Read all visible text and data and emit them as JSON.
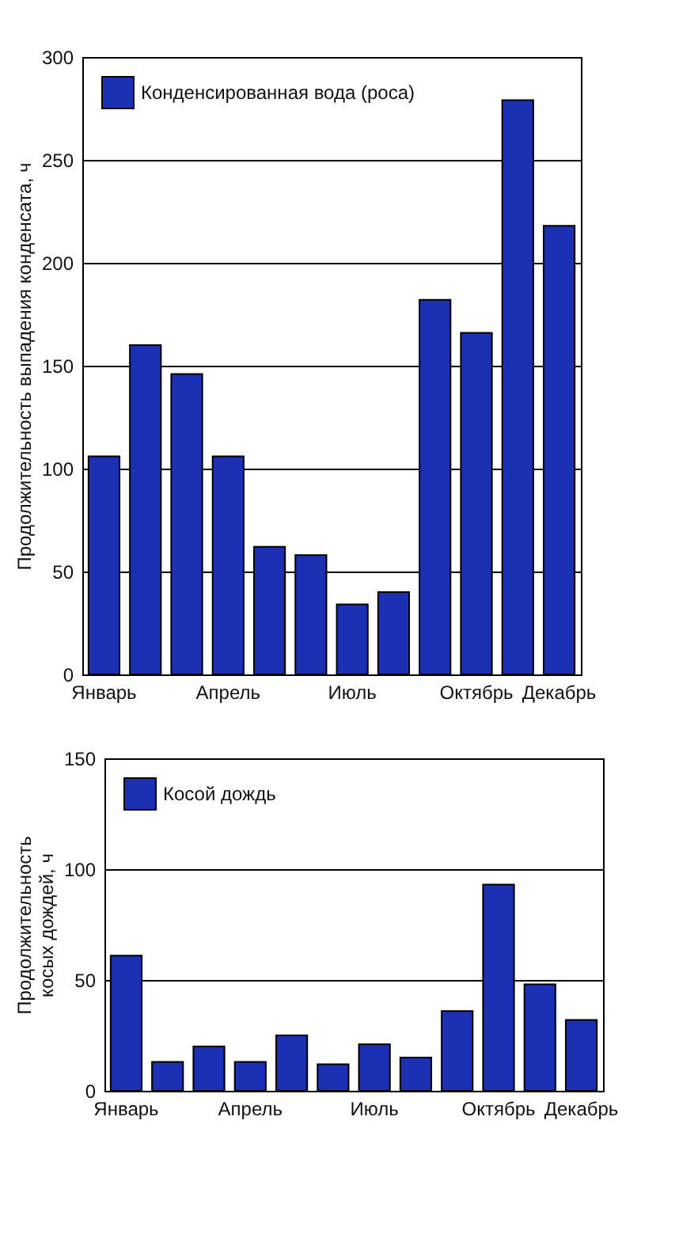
{
  "chart_data": [
    {
      "type": "bar",
      "categories": [
        "Январь",
        null,
        null,
        "Апрель",
        null,
        null,
        "Июль",
        null,
        null,
        "Октябрь",
        null,
        "Декабрь"
      ],
      "ylabel": "Продолжительность выпадения конденсата, ч",
      "ylim": [
        0,
        300
      ],
      "yticks": [
        0,
        50,
        100,
        150,
        200,
        250,
        300
      ],
      "grid": "y",
      "legend": "top left",
      "series": [
        {
          "name": "Конденсированная вода (роса)",
          "color": "#1c30b4",
          "values": [
            106,
            160,
            146,
            106,
            62,
            58,
            34,
            40,
            182,
            166,
            279,
            218
          ]
        }
      ]
    },
    {
      "type": "bar",
      "categories": [
        "Январь",
        null,
        null,
        "Апрель",
        null,
        null,
        "Июль",
        null,
        null,
        "Октябрь",
        null,
        "Декабрь"
      ],
      "ylabel": "Продолжительность\nкосых дождей, ч",
      "ylim": [
        0,
        150
      ],
      "yticks": [
        0,
        50,
        100,
        150
      ],
      "grid": "y",
      "legend": "top left",
      "series": [
        {
          "name": "Косой дождь",
          "color": "#1c30b4",
          "values": [
            61,
            13,
            20,
            13,
            25,
            12,
            21,
            15,
            36,
            93,
            48,
            32
          ]
        }
      ]
    }
  ]
}
